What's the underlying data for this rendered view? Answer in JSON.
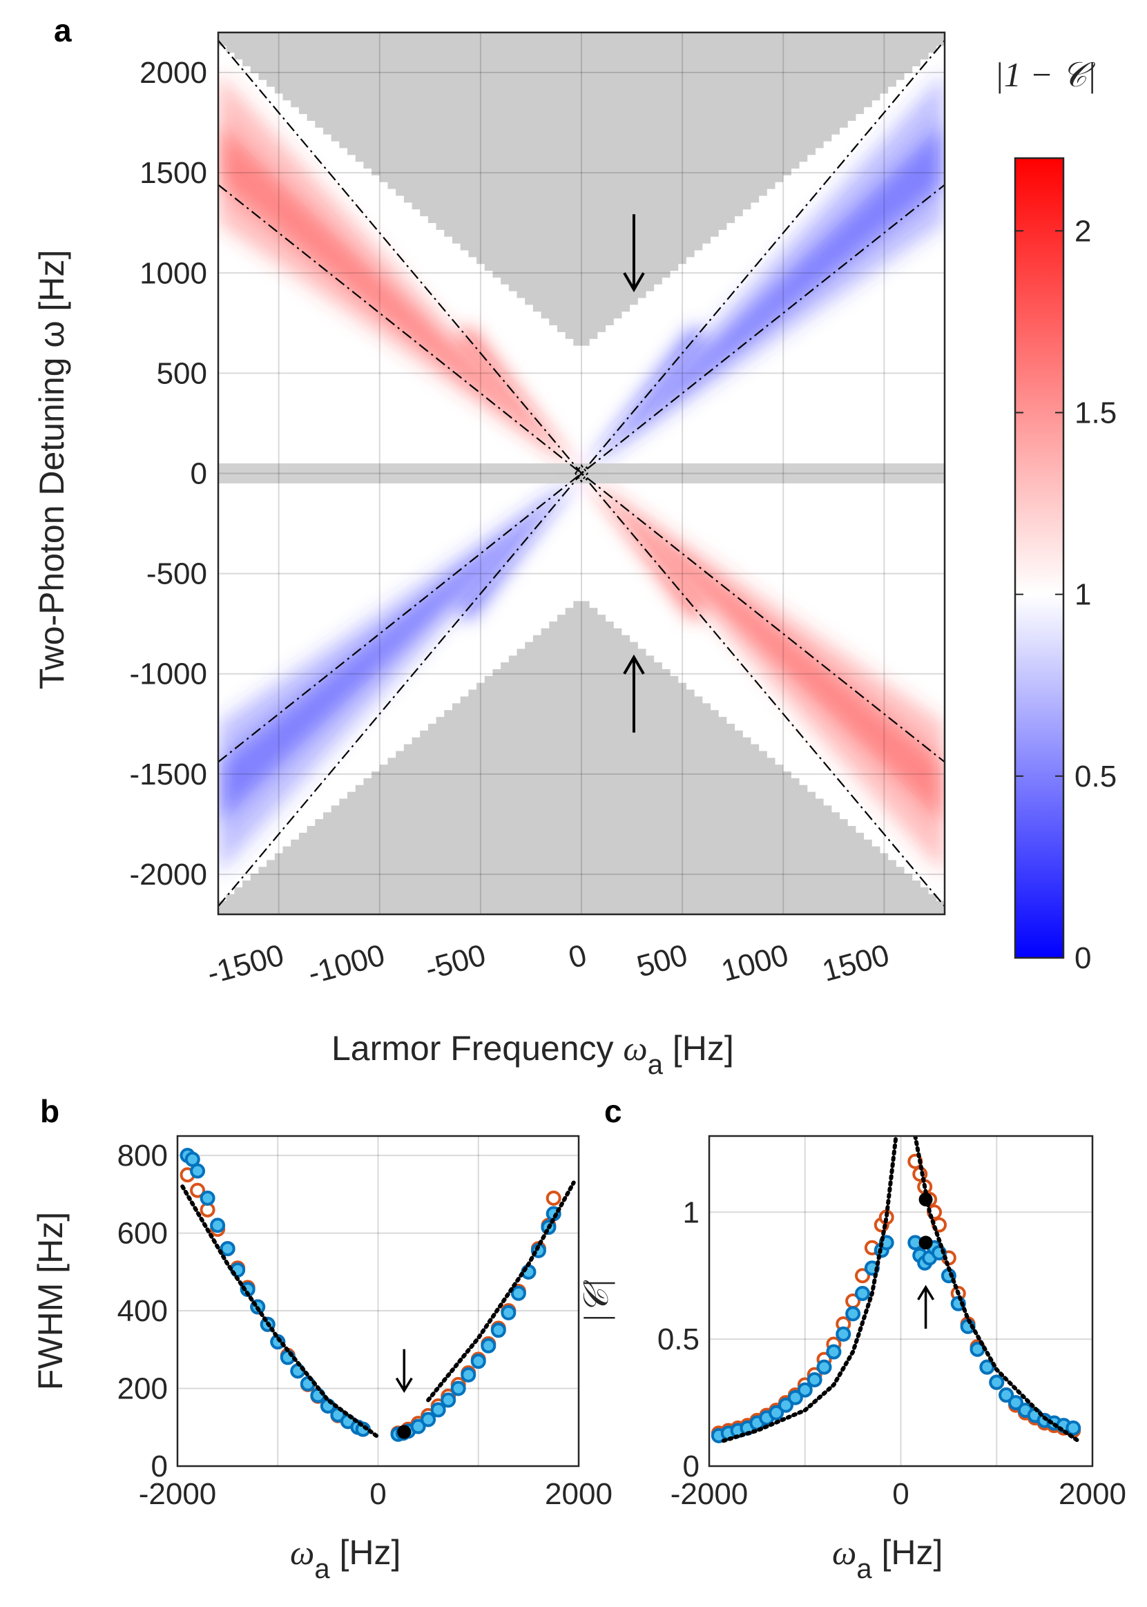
{
  "chart_data": [
    {
      "panel": "a",
      "type": "heatmap",
      "xlabel_text": "Larmor Frequency ",
      "xlabel_sym": "ω",
      "xlabel_sub": "a",
      "xlabel_unit": " [Hz]",
      "ylabel": "Two-Photon Detuning ω [Hz]",
      "xlim": [
        -1800,
        1800
      ],
      "ylim": [
        -2200,
        2200
      ],
      "xticks": [
        -1500,
        -1000,
        -500,
        0,
        500,
        1000,
        1500
      ],
      "yticks": [
        -2000,
        -1500,
        -1000,
        -500,
        0,
        500,
        1000,
        1500,
        2000
      ],
      "colorbar": {
        "title": "|1 − 𝒞|",
        "range": [
          0,
          2.2
        ],
        "ticks": [
          0,
          0.5,
          1,
          1.5,
          2
        ]
      },
      "masked_regions": [
        "top wedge |ω| > 620 + 0.85·|ωa| (ω > 0)",
        "bottom wedge (ω < 0)",
        "horizontal band |ω| < 50"
      ],
      "guide_lines": [
        {
          "style": "dash-dot",
          "slope": 1.2
        },
        {
          "style": "dash-dot",
          "slope": -1.2
        },
        {
          "style": "dash-dot",
          "slope": 0.8
        },
        {
          "style": "dash-dot",
          "slope": -0.8
        }
      ],
      "annotations": [
        {
          "type": "arrow-down",
          "x": 260,
          "y": 1000
        },
        {
          "type": "arrow-up",
          "x": 260,
          "y": -1000
        }
      ]
    },
    {
      "panel": "b",
      "type": "scatter",
      "ylabel": "FWHM [Hz]",
      "xlabel_sym": "ω",
      "xlabel_sub": "a",
      "xlabel_unit": " [Hz]",
      "xlim": [
        -2000,
        2000
      ],
      "ylim": [
        0,
        850
      ],
      "xticks": [
        -2000,
        0,
        2000
      ],
      "yticks": [
        0,
        200,
        400,
        600,
        800
      ],
      "series": [
        {
          "name": "orange",
          "color": "#D95319",
          "x": [
            -1900,
            -1800,
            -1700,
            -1600,
            -1500,
            -1400,
            -1300,
            -1200,
            -1100,
            -1000,
            -900,
            -800,
            -700,
            -600,
            -500,
            -400,
            -300,
            -200,
            -150,
            200,
            300,
            400,
            500,
            600,
            700,
            800,
            900,
            1000,
            1100,
            1200,
            1300,
            1400,
            1500,
            1600,
            1700,
            1750
          ],
          "y": [
            750,
            710,
            660,
            610,
            560,
            510,
            460,
            410,
            365,
            320,
            285,
            245,
            210,
            180,
            155,
            130,
            115,
            100,
            95,
            85,
            95,
            110,
            130,
            155,
            180,
            210,
            240,
            275,
            315,
            355,
            400,
            450,
            500,
            560,
            620,
            690
          ]
        },
        {
          "name": "blue",
          "color": "#0072BD",
          "x": [
            -1900,
            -1850,
            -1800,
            -1700,
            -1600,
            -1500,
            -1400,
            -1300,
            -1200,
            -1100,
            -1000,
            -900,
            -800,
            -700,
            -600,
            -500,
            -400,
            -300,
            -200,
            -150,
            200,
            250,
            300,
            400,
            500,
            600,
            700,
            800,
            900,
            1000,
            1100,
            1200,
            1300,
            1400,
            1500,
            1600,
            1700,
            1750
          ],
          "y": [
            800,
            790,
            760,
            690,
            620,
            560,
            505,
            455,
            410,
            365,
            320,
            280,
            245,
            212,
            182,
            155,
            132,
            115,
            100,
            95,
            82,
            85,
            90,
            102,
            120,
            145,
            170,
            200,
            235,
            270,
            310,
            350,
            395,
            445,
            500,
            555,
            615,
            650
          ]
        },
        {
          "name": "fit",
          "style": "dotted",
          "color": "#000000",
          "x": [
            -1950,
            -1500,
            -1000,
            -500,
            0,
            500,
            1000,
            1500,
            1950
          ],
          "y": [
            720,
            520,
            330,
            170,
            75,
            170,
            330,
            520,
            730
          ]
        }
      ],
      "highlight": {
        "x": 260,
        "y": 88
      },
      "annotations": [
        {
          "type": "arrow-down",
          "x": 260,
          "y": 230
        }
      ]
    },
    {
      "panel": "c",
      "type": "scatter",
      "ylabel": "|𝒞|",
      "xlabel_sym": "ω",
      "xlabel_sub": "a",
      "xlabel_unit": " [Hz]",
      "xlim": [
        -2000,
        2000
      ],
      "ylim": [
        0,
        1.3
      ],
      "xticks": [
        -2000,
        0,
        2000
      ],
      "yticks": [
        0,
        0.5,
        1
      ],
      "series": [
        {
          "name": "orange",
          "color": "#D95319",
          "x": [
            -1900,
            -1800,
            -1700,
            -1600,
            -1500,
            -1400,
            -1300,
            -1200,
            -1100,
            -1000,
            -900,
            -800,
            -700,
            -600,
            -500,
            -400,
            -300,
            -200,
            -150,
            150,
            200,
            250,
            300,
            350,
            400,
            500,
            600,
            700,
            800,
            900,
            1000,
            1100,
            1200,
            1300,
            1400,
            1500,
            1600,
            1700,
            1800
          ],
          "y": [
            0.13,
            0.14,
            0.15,
            0.16,
            0.18,
            0.2,
            0.22,
            0.25,
            0.28,
            0.32,
            0.36,
            0.42,
            0.48,
            0.56,
            0.65,
            0.75,
            0.86,
            0.95,
            0.98,
            1.2,
            1.15,
            1.1,
            1.05,
            1.0,
            0.95,
            0.82,
            0.68,
            0.56,
            0.47,
            0.39,
            0.33,
            0.28,
            0.24,
            0.21,
            0.19,
            0.17,
            0.16,
            0.15,
            0.14
          ]
        },
        {
          "name": "blue",
          "color": "#0072BD",
          "x": [
            -1900,
            -1800,
            -1700,
            -1600,
            -1500,
            -1400,
            -1300,
            -1200,
            -1100,
            -1000,
            -900,
            -800,
            -700,
            -600,
            -500,
            -400,
            -300,
            -200,
            -150,
            150,
            200,
            250,
            300,
            350,
            400,
            500,
            600,
            700,
            800,
            900,
            1000,
            1100,
            1200,
            1300,
            1400,
            1500,
            1600,
            1700,
            1800
          ],
          "y": [
            0.12,
            0.13,
            0.14,
            0.15,
            0.17,
            0.19,
            0.21,
            0.24,
            0.27,
            0.3,
            0.34,
            0.39,
            0.45,
            0.52,
            0.6,
            0.68,
            0.78,
            0.85,
            0.88,
            0.88,
            0.83,
            0.8,
            0.82,
            0.86,
            0.84,
            0.75,
            0.64,
            0.55,
            0.46,
            0.39,
            0.33,
            0.28,
            0.25,
            0.22,
            0.2,
            0.18,
            0.17,
            0.16,
            0.15
          ]
        },
        {
          "name": "fit",
          "style": "dotted",
          "color": "#000000",
          "x": [
            -1850,
            -1500,
            -1000,
            -700,
            -500,
            -300,
            -150,
            -50,
            150,
            300,
            500,
            700,
            1000,
            1500,
            1850
          ],
          "y": [
            0.1,
            0.14,
            0.22,
            0.32,
            0.45,
            0.68,
            0.98,
            1.3,
            1.3,
            1.0,
            0.78,
            0.58,
            0.38,
            0.19,
            0.1
          ]
        }
      ],
      "highlight": [
        {
          "x": 260,
          "y": 1.05
        },
        {
          "x": 260,
          "y": 0.88
        }
      ],
      "annotations": [
        {
          "type": "arrow-up",
          "x": 260,
          "y": 0.65
        }
      ]
    }
  ],
  "labels": {
    "a": "a",
    "b": "b",
    "c": "c"
  }
}
